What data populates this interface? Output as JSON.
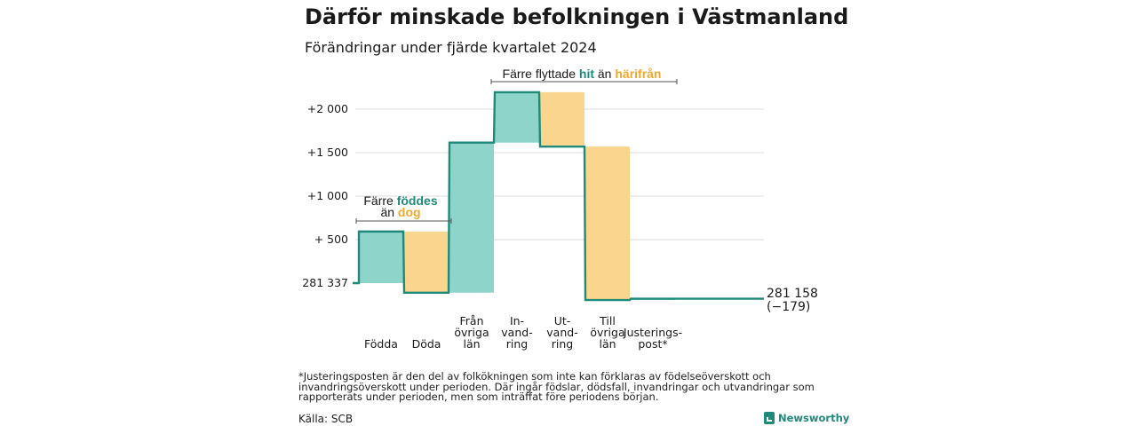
{
  "title": "Därför minskade befolkningen i Västmanland",
  "subtitle": "Förändringar under fjärde kvartalet 2024",
  "chart_data": {
    "type": "waterfall",
    "baseline": 281337,
    "end_value": 281158,
    "end_label_value": "281 158",
    "end_label_change": "(−179)",
    "y_ticks": [
      {
        "v": 0,
        "label": "281 337"
      },
      {
        "v": 500,
        "label": "+  500"
      },
      {
        "v": 1000,
        "label": "+1 000"
      },
      {
        "v": 1500,
        "label": "+1 500"
      },
      {
        "v": 2000,
        "label": "+2 000"
      }
    ],
    "y_range": [
      -200,
      2300
    ],
    "steps": [
      {
        "label": [
          "Födda"
        ],
        "delta": 593,
        "color": "#8fd4cb"
      },
      {
        "label": [
          "Döda"
        ],
        "delta": -703,
        "color": "#f9d58d"
      },
      {
        "label": [
          "Från",
          "övriga",
          "län"
        ],
        "delta": 1725,
        "color": "#8fd4cb"
      },
      {
        "label": [
          "In-",
          "vand-",
          "ring"
        ],
        "delta": 580,
        "color": "#8fd4cb"
      },
      {
        "label": [
          "Ut-",
          "vand-",
          "ring"
        ],
        "delta": -625,
        "color": "#f9d58d"
      },
      {
        "label": [
          "Till",
          "övriga",
          "län"
        ],
        "delta": -1765,
        "color": "#f9d58d"
      },
      {
        "label": [
          "Justerings-",
          "post*"
        ],
        "delta": 16,
        "color": "#8fd4cb"
      }
    ],
    "annotations": [
      {
        "parts": [
          {
            "t": "Färre ",
            "c": "#1a1a1a"
          },
          {
            "t": "föddes",
            "c": "#1f8a7a"
          }
        ],
        "parts2": [
          {
            "t": "än ",
            "c": "#1a1a1a"
          },
          {
            "t": "dog",
            "c": "#f0a830"
          }
        ]
      },
      {
        "parts": [
          {
            "t": "Färre flyttade ",
            "c": "#1a1a1a"
          },
          {
            "t": "hit",
            "c": "#1f8a7a"
          },
          {
            "t": " än ",
            "c": "#1a1a1a"
          },
          {
            "t": "härifrån",
            "c": "#f0a830"
          }
        ]
      }
    ],
    "colors": {
      "line": "#1f8a7a",
      "grid": "#dddddd",
      "gain": "#8fd4cb",
      "loss": "#f9d58d"
    }
  },
  "footnote": "*Justeringsposten är den del av folkökningen som inte kan förklaras av födelseöverskott och invandringsöverskott under perioden. Där ingår födslar, dödsfall, invandringar och utvandringar som rapporterats under perioden, men som inträffat före periodens början.",
  "source": "Källa: SCB",
  "brand": "Newsworthy"
}
